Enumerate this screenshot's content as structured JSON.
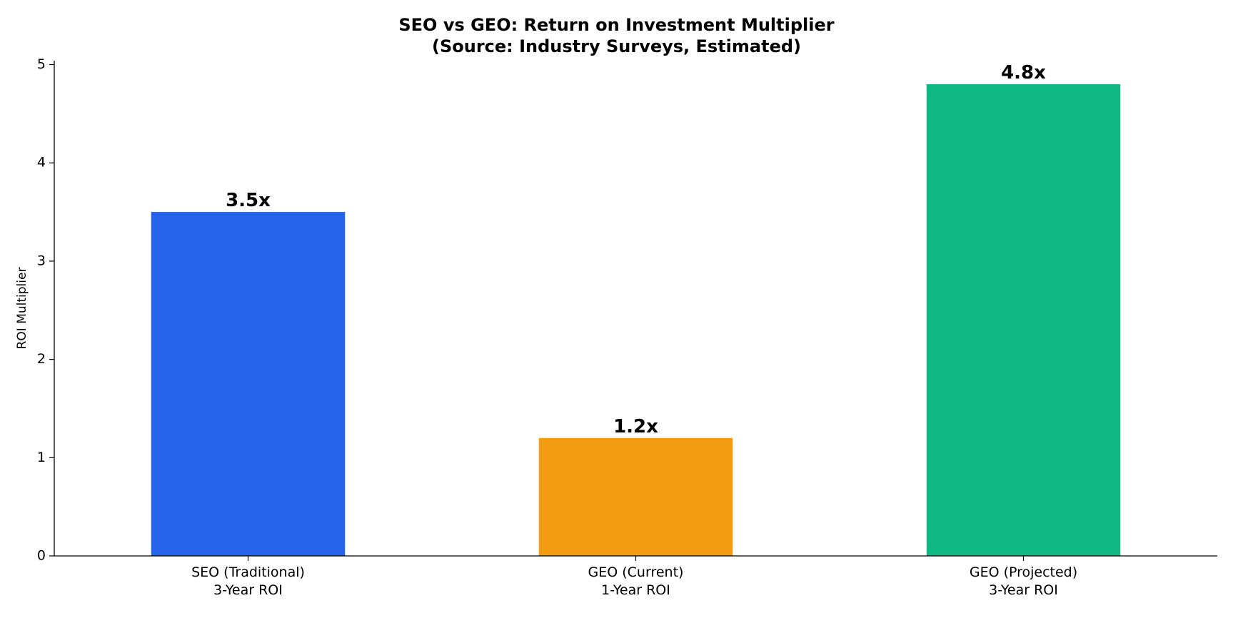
{
  "chart_data": {
    "type": "bar",
    "title": "SEO vs GEO: Return on Investment Multiplier\n(Source: Industry Surveys, Estimated)",
    "y_label": "ROI Multiplier",
    "categories": [
      "SEO (Traditional)\n3-Year ROI",
      "GEO (Current)\n1-Year ROI",
      "GEO (Projected)\n3-Year ROI"
    ],
    "values": [
      3.5,
      1.2,
      4.8
    ],
    "value_labels": [
      "3.5x",
      "1.2x",
      "4.8x"
    ],
    "colors": [
      "#2563eb",
      "#f39c12",
      "#10b981"
    ],
    "ylim": [
      0,
      5.04
    ],
    "yticks": [
      0,
      1,
      2,
      3,
      4,
      5
    ],
    "grid": false
  }
}
